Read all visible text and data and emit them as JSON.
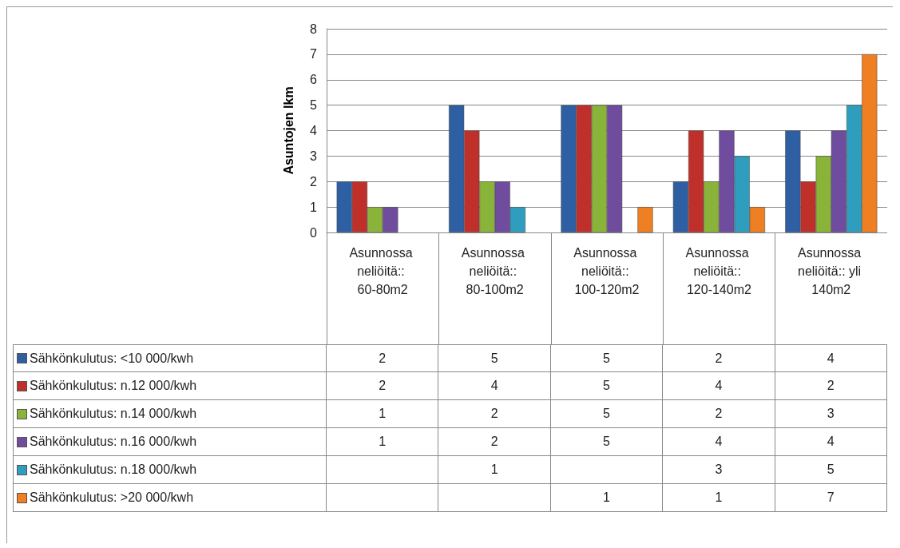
{
  "chart_data": {
    "type": "bar",
    "ylabel": "Asuntojen lkm",
    "categories": [
      "Asunnossa neliöitä:: 60-80m2",
      "Asunnossa neliöitä:: 80-100m2",
      "Asunnossa neliöitä:: 100-120m2",
      "Asunnossa neliöitä:: 120-140m2",
      "Asunnossa neliöitä:: yli 140m2"
    ],
    "series": [
      {
        "name": "Sähkönkulutus: <10 000/kwh",
        "color": "#2e5fa3",
        "values": [
          2,
          5,
          5,
          2,
          4
        ]
      },
      {
        "name": "Sähkönkulutus: n.12 000/kwh",
        "color": "#c0302b",
        "values": [
          2,
          4,
          5,
          4,
          2
        ]
      },
      {
        "name": "Sähkönkulutus: n.14 000/kwh",
        "color": "#8ab33a",
        "values": [
          1,
          2,
          5,
          2,
          3
        ]
      },
      {
        "name": "Sähkönkulutus: n.16 000/kwh",
        "color": "#6f4c9e",
        "values": [
          1,
          2,
          5,
          4,
          4
        ]
      },
      {
        "name": "Sähkönkulutus: n.18 000/kwh",
        "color": "#2f9dbd",
        "values": [
          null,
          1,
          null,
          3,
          5
        ]
      },
      {
        "name": "Sähkönkulutus: >20 000/kwh",
        "color": "#ee7f22",
        "values": [
          null,
          null,
          1,
          1,
          7
        ]
      }
    ],
    "ylim": [
      0,
      8
    ],
    "yticks": [
      0,
      1,
      2,
      3,
      4,
      5,
      6,
      7,
      8
    ],
    "grid": "y",
    "legend": "bottom",
    "data_labels": true
  }
}
